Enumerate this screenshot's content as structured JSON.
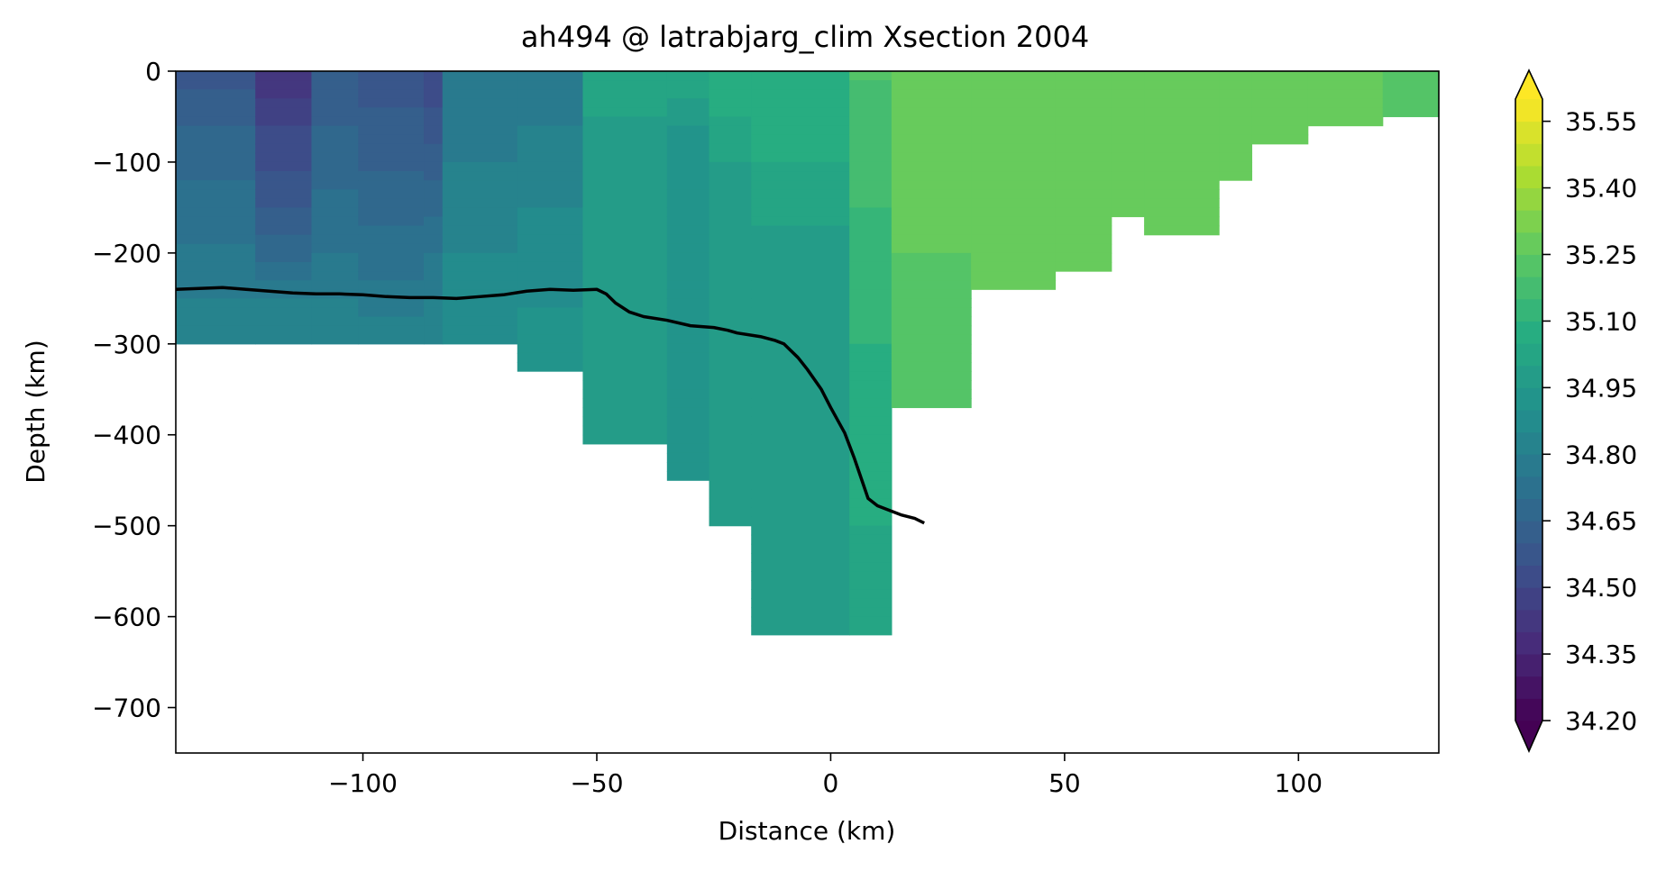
{
  "chart_data": {
    "type": "heatmap",
    "title": "ah494 @ latrabjarg_clim Xsection 2004",
    "xlabel": "Distance (km)",
    "ylabel": "Depth (km)",
    "xlim": [
      -140,
      130
    ],
    "ylim": [
      -750,
      0
    ],
    "xticks": [
      -100,
      -50,
      0,
      50,
      100
    ],
    "xtick_labels": [
      "−100",
      "−50",
      "0",
      "50",
      "100"
    ],
    "yticks": [
      0,
      -100,
      -200,
      -300,
      -400,
      -500,
      -600,
      -700
    ],
    "ytick_labels": [
      "0",
      "−100",
      "−200",
      "−300",
      "−400",
      "−500",
      "−600",
      "−700"
    ],
    "colorbar": {
      "colormap": "viridis",
      "vmin": 34.2,
      "vmax": 35.6,
      "levels": 28,
      "extend": "both",
      "ticks": [
        34.2,
        34.35,
        34.5,
        34.65,
        34.8,
        34.95,
        35.1,
        35.25,
        35.4,
        35.55
      ],
      "tick_labels": [
        "34.20",
        "34.35",
        "34.50",
        "34.65",
        "34.80",
        "34.95",
        "35.10",
        "35.25",
        "35.40",
        "35.55"
      ]
    },
    "field_columns": [
      {
        "x0": -140,
        "x1": -123,
        "bottom": -300,
        "values": [
          [
            -10,
            34.58
          ],
          [
            -60,
            34.65
          ],
          [
            -150,
            34.72
          ],
          [
            -250,
            34.8
          ],
          [
            -300,
            34.85
          ]
        ]
      },
      {
        "x0": -123,
        "x1": -111,
        "bottom": -300,
        "values": [
          [
            -10,
            34.42
          ],
          [
            -60,
            34.5
          ],
          [
            -150,
            34.6
          ],
          [
            -210,
            34.7
          ],
          [
            -250,
            34.8
          ],
          [
            -300,
            34.85
          ]
        ]
      },
      {
        "x0": -111,
        "x1": -101,
        "bottom": -300,
        "values": [
          [
            -10,
            34.62
          ],
          [
            -100,
            34.68
          ],
          [
            -200,
            34.75
          ],
          [
            -300,
            34.85
          ]
        ]
      },
      {
        "x0": -101,
        "x1": -87,
        "bottom": -300,
        "values": [
          [
            -10,
            34.58
          ],
          [
            -100,
            34.64
          ],
          [
            -200,
            34.72
          ],
          [
            -300,
            34.84
          ]
        ]
      },
      {
        "x0": -87,
        "x1": -83,
        "bottom": -300,
        "values": [
          [
            -10,
            34.52
          ],
          [
            -100,
            34.62
          ],
          [
            -200,
            34.75
          ],
          [
            -300,
            34.85
          ]
        ]
      },
      {
        "x0": -83,
        "x1": -67,
        "bottom": -300,
        "values": [
          [
            -10,
            34.78
          ],
          [
            -100,
            34.8
          ],
          [
            -200,
            34.85
          ],
          [
            -300,
            34.9
          ]
        ]
      },
      {
        "x0": -67,
        "x1": -53,
        "bottom": -330,
        "values": [
          [
            -10,
            34.78
          ],
          [
            -100,
            34.82
          ],
          [
            -200,
            34.88
          ],
          [
            -330,
            34.92
          ]
        ]
      },
      {
        "x0": -53,
        "x1": -35,
        "bottom": -410,
        "values": [
          [
            -10,
            35.05
          ],
          [
            -100,
            34.95
          ],
          [
            -200,
            34.95
          ],
          [
            -410,
            34.95
          ]
        ]
      },
      {
        "x0": -35,
        "x1": -26,
        "bottom": -450,
        "values": [
          [
            -10,
            35.05
          ],
          [
            -80,
            34.9
          ],
          [
            -200,
            34.93
          ],
          [
            -450,
            34.95
          ]
        ]
      },
      {
        "x0": -26,
        "x1": -17,
        "bottom": -500,
        "values": [
          [
            -10,
            35.1
          ],
          [
            -100,
            35.0
          ],
          [
            -200,
            34.95
          ],
          [
            -500,
            34.95
          ]
        ]
      },
      {
        "x0": -17,
        "x1": 4,
        "bottom": -620,
        "values": [
          [
            -10,
            35.1
          ],
          [
            -100,
            35.05
          ],
          [
            -200,
            34.98
          ],
          [
            -620,
            34.95
          ]
        ]
      },
      {
        "x0": 4,
        "x1": 13,
        "bottom": -620,
        "values": [
          [
            -10,
            35.2
          ],
          [
            -150,
            35.15
          ],
          [
            -300,
            35.1
          ],
          [
            -620,
            35.02
          ]
        ]
      },
      {
        "x0": 13,
        "x1": 30,
        "bottom": -370,
        "values": [
          [
            -10,
            35.3
          ],
          [
            -200,
            35.25
          ],
          [
            -370,
            35.2
          ]
        ]
      },
      {
        "x0": 30,
        "x1": 48,
        "bottom": -240,
        "values": [
          [
            -10,
            35.3
          ],
          [
            -240,
            35.3
          ]
        ]
      },
      {
        "x0": 48,
        "x1": 60,
        "bottom": -220,
        "values": [
          [
            -10,
            35.3
          ],
          [
            -220,
            35.3
          ]
        ]
      },
      {
        "x0": 60,
        "x1": 67,
        "bottom": -160,
        "values": [
          [
            -10,
            35.3
          ],
          [
            -160,
            35.3
          ]
        ]
      },
      {
        "x0": 67,
        "x1": 83,
        "bottom": -180,
        "values": [
          [
            -10,
            35.3
          ],
          [
            -180,
            35.3
          ]
        ]
      },
      {
        "x0": 83,
        "x1": 90,
        "bottom": -120,
        "values": [
          [
            -10,
            35.3
          ],
          [
            -120,
            35.3
          ]
        ]
      },
      {
        "x0": 90,
        "x1": 102,
        "bottom": -80,
        "values": [
          [
            -10,
            35.3
          ],
          [
            -80,
            35.3
          ]
        ]
      },
      {
        "x0": 102,
        "x1": 118,
        "bottom": -60,
        "values": [
          [
            -10,
            35.3
          ],
          [
            -60,
            35.3
          ]
        ]
      },
      {
        "x0": 118,
        "x1": 130,
        "bottom": -50,
        "values": [
          [
            -10,
            35.25
          ],
          [
            -50,
            35.25
          ]
        ]
      }
    ],
    "series": [
      {
        "x": [
          -140,
          -135,
          -130,
          -125,
          -120,
          -115,
          -110,
          -105,
          -100,
          -95,
          -90,
          -85,
          -80,
          -75,
          -70,
          -65,
          -60,
          -55,
          -50,
          -48,
          -46,
          -43,
          -40,
          -35,
          -30,
          -25,
          -22,
          -20,
          -15,
          -12,
          -10,
          -7,
          -5,
          -2,
          0,
          3,
          5,
          7,
          8,
          10,
          12,
          15,
          18,
          20
        ],
        "y": [
          -240,
          -239,
          -238,
          -240,
          -242,
          -244,
          -245,
          -245,
          -246,
          -248,
          -249,
          -249,
          -250,
          -248,
          -246,
          -242,
          -240,
          -241,
          -240,
          -245,
          -255,
          -265,
          -270,
          -274,
          -280,
          -282,
          -285,
          -288,
          -292,
          -296,
          -300,
          -315,
          -328,
          -350,
          -370,
          -398,
          -425,
          -455,
          -470,
          -478,
          -482,
          -488,
          -492,
          -497
        ]
      }
    ]
  }
}
